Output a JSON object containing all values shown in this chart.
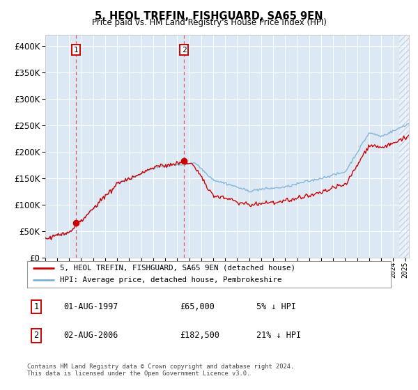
{
  "title": "5, HEOL TREFIN, FISHGUARD, SA65 9EN",
  "subtitle": "Price paid vs. HM Land Registry's House Price Index (HPI)",
  "legend_line1": "5, HEOL TREFIN, FISHGUARD, SA65 9EN (detached house)",
  "legend_line2": "HPI: Average price, detached house, Pembrokeshire",
  "annotation1_date": "01-AUG-1997",
  "annotation1_price": "£65,000",
  "annotation1_hpi": "5% ↓ HPI",
  "annotation2_date": "02-AUG-2006",
  "annotation2_price": "£182,500",
  "annotation2_hpi": "21% ↓ HPI",
  "footer": "Contains HM Land Registry data © Crown copyright and database right 2024.\nThis data is licensed under the Open Government Licence v3.0.",
  "price_line_color": "#cc0000",
  "hpi_line_color": "#7ab0d4",
  "background_color": "#dce9f5",
  "ylim": [
    0,
    420000
  ],
  "yticks": [
    0,
    50000,
    100000,
    150000,
    200000,
    250000,
    300000,
    350000,
    400000
  ],
  "sale1_year": 1997.58,
  "sale1_price": 65000,
  "sale2_year": 2006.58,
  "sale2_price": 182500,
  "vline1_year": 1997.58,
  "vline2_year": 2006.58,
  "xlim_start": 1995,
  "xlim_end": 2025.3
}
